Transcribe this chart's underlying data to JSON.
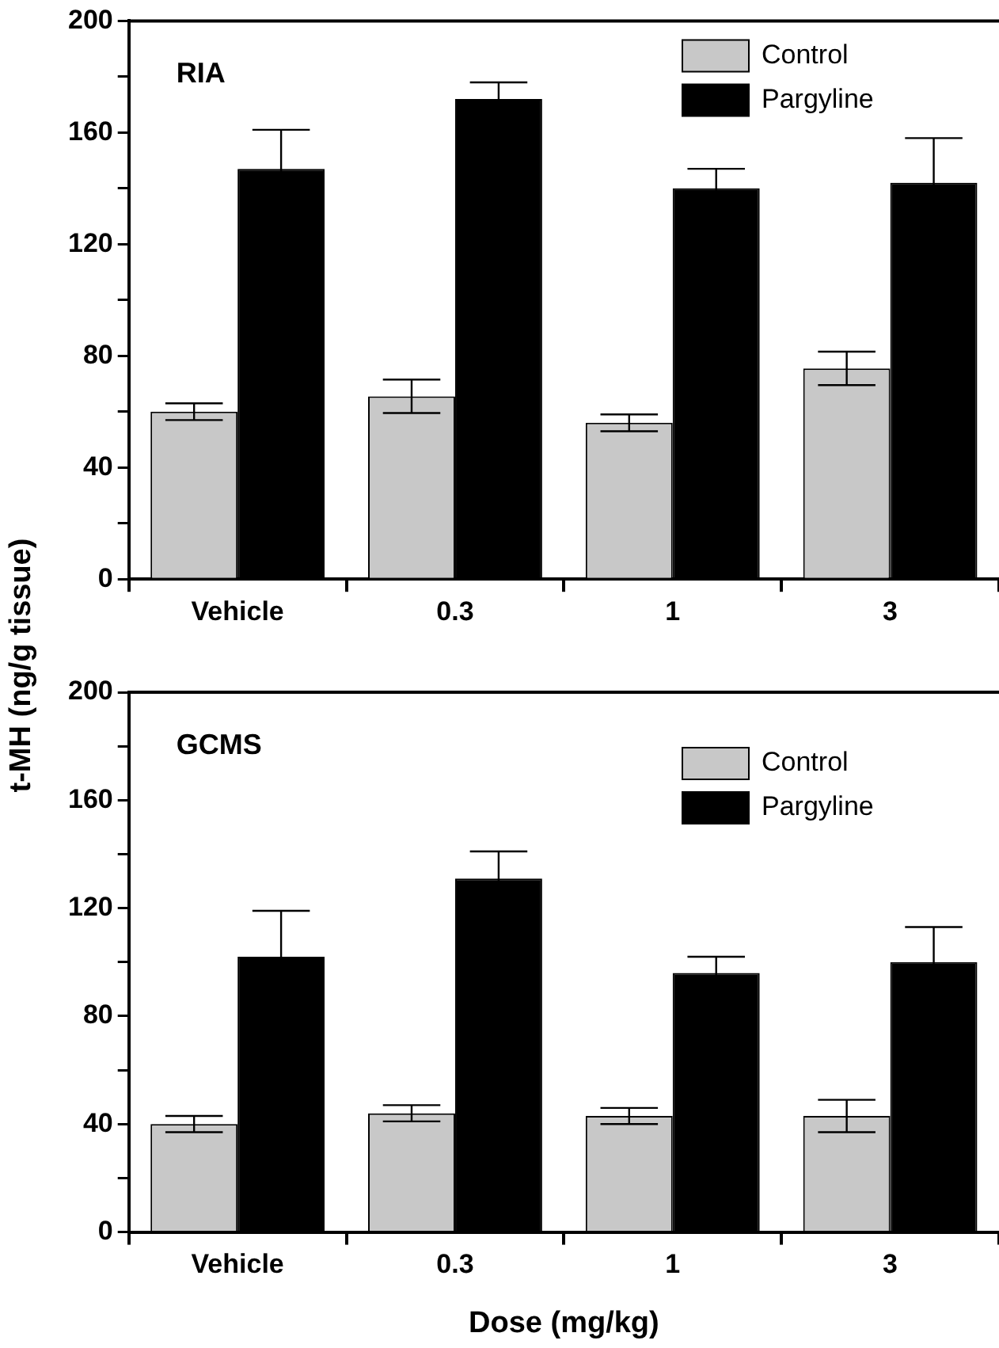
{
  "chart_data": [
    {
      "type": "bar",
      "ylabel": "t-MH (ng/g tissue)",
      "annotations": [
        "RIA"
      ],
      "categories": [
        "Vehicle",
        "0.3",
        "1",
        "3"
      ],
      "series": [
        {
          "name": "Control",
          "color": "#c8c8c8",
          "values": [
            60,
            65.5,
            56,
            75.5
          ],
          "errors": [
            3,
            6,
            3,
            6
          ]
        },
        {
          "name": "Pargyline",
          "color": "#000000",
          "values": [
            147,
            172,
            140,
            142
          ],
          "errors": [
            14,
            6,
            7,
            16
          ]
        }
      ],
      "ylim": [
        0,
        200
      ],
      "yticks": [
        0,
        {
          "value": 20,
          "label": null
        },
        40,
        {
          "value": 60,
          "label": null
        },
        80,
        {
          "value": 100,
          "label": null
        },
        120,
        {
          "value": 140,
          "label": null
        },
        160,
        {
          "value": 180,
          "label": null
        },
        200
      ],
      "grid": false,
      "legend": "top right"
    },
    {
      "type": "bar",
      "xlabel": "Dose (mg/kg)",
      "annotations": [
        "GCMS"
      ],
      "categories": [
        "Vehicle",
        "0.3",
        "1",
        "3"
      ],
      "series": [
        {
          "name": "Control",
          "color": "#c8c8c8",
          "values": [
            40,
            44,
            43,
            43
          ],
          "errors": [
            3,
            3,
            3,
            6
          ]
        },
        {
          "name": "Pargyline",
          "color": "#000000",
          "values": [
            102,
            131,
            96,
            100
          ],
          "errors": [
            17,
            10,
            6,
            13
          ]
        }
      ],
      "ylim": [
        0,
        200
      ],
      "yticks": [
        0,
        {
          "value": 20,
          "label": null
        },
        40,
        {
          "value": 60,
          "label": null
        },
        80,
        {
          "value": 100,
          "label": null
        },
        120,
        {
          "value": 140,
          "label": null
        },
        160,
        {
          "value": 180,
          "label": null
        },
        200
      ],
      "grid": false,
      "legend": "top right"
    }
  ]
}
